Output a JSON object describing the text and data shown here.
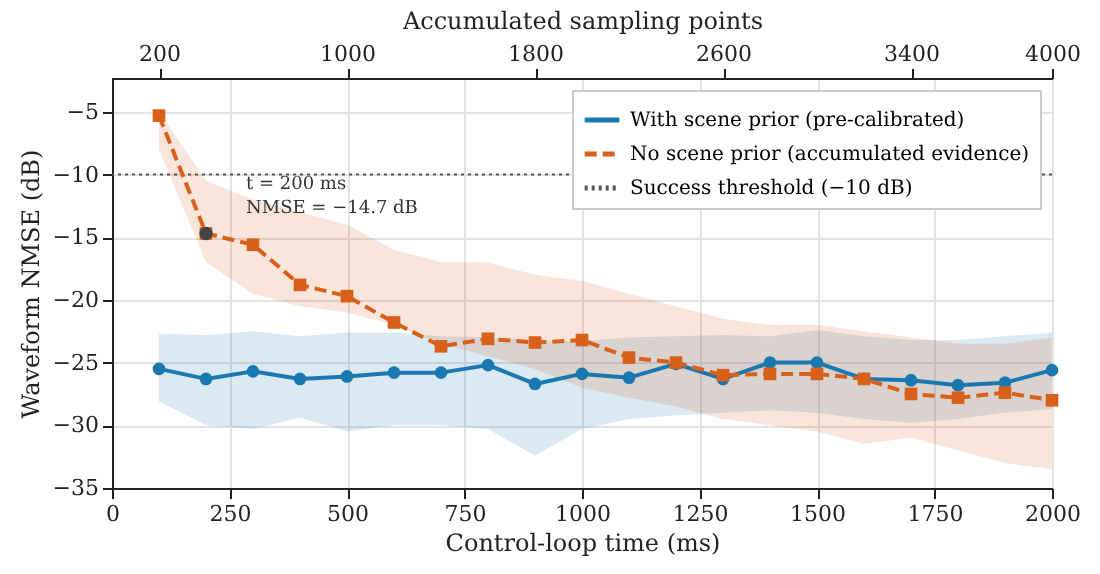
{
  "chart_data": {
    "type": "line",
    "xlabel": "Control-loop time (ms)",
    "ylabel": "Waveform NMSE (dB)",
    "x2label": "Accumulated sampling points",
    "x": [
      100,
      200,
      300,
      400,
      500,
      600,
      700,
      800,
      900,
      1000,
      1100,
      1200,
      1300,
      1400,
      1500,
      1600,
      1700,
      1800,
      1900,
      2000
    ],
    "series": [
      {
        "name": "With scene prior (pre-calibrated)",
        "color": "#1a78b0",
        "marker": "circle",
        "line_style": "solid",
        "values": [
          -25.5,
          -26.3,
          -25.7,
          -26.3,
          -26.1,
          -25.8,
          -25.8,
          -25.2,
          -26.7,
          -25.9,
          -26.2,
          -25.1,
          -26.3,
          -25.0,
          -25.0,
          -26.3,
          -26.4,
          -26.8,
          -26.6,
          -25.6
        ],
        "lower": [
          -28.1,
          -30.0,
          -30.3,
          -29.4,
          -30.5,
          -30.0,
          -30.0,
          -30.3,
          -32.4,
          -30.3,
          -29.5,
          -29.2,
          -29.0,
          -28.8,
          -29.0,
          -29.5,
          -29.8,
          -29.5,
          -29.0,
          -28.7
        ],
        "upper": [
          -22.7,
          -22.8,
          -22.5,
          -22.9,
          -22.6,
          -22.6,
          -22.9,
          -23.0,
          -23.2,
          -23.3,
          -23.0,
          -22.9,
          -22.8,
          -22.9,
          -22.4,
          -22.9,
          -23.2,
          -23.2,
          -22.9,
          -22.6
        ]
      },
      {
        "name": "No scene prior (accumulated evidence)",
        "color": "#d8601a",
        "marker": "square",
        "line_style": "dashed",
        "values": [
          -5.3,
          -14.7,
          -15.6,
          -18.8,
          -19.7,
          -21.8,
          -23.7,
          -23.1,
          -23.4,
          -23.2,
          -24.6,
          -25.0,
          -26.0,
          -25.9,
          -25.9,
          -26.3,
          -27.5,
          -27.8,
          -27.4,
          -28.0
        ],
        "lower": [
          -8.0,
          -17.0,
          -19.5,
          -20.5,
          -21.0,
          -22.0,
          -23.5,
          -24.5,
          -25.5,
          -27.0,
          -27.8,
          -28.5,
          -29.5,
          -30.0,
          -30.5,
          -31.5,
          -31.0,
          -32.0,
          -33.0,
          -33.5
        ],
        "upper": [
          -5.0,
          -10.5,
          -12.0,
          -13.0,
          -14.0,
          -16.0,
          -17.0,
          -17.0,
          -18.0,
          -18.5,
          -19.5,
          -20.5,
          -21.5,
          -22.0,
          -22.0,
          -22.5,
          -23.0,
          -23.5,
          -23.5,
          -23.0
        ]
      }
    ],
    "ref_lines": [
      {
        "axis": "y",
        "value": -10,
        "label": "Success threshold (−10 dB)",
        "color": "#555555",
        "line_style": "dotted"
      }
    ],
    "annotations": [
      {
        "text": "t = 200 ms\nNMSE = −14.7 dB",
        "x": 200,
        "y": -14.7
      }
    ],
    "xlim": [
      0,
      2000
    ],
    "xticks": [
      0,
      250,
      500,
      750,
      1000,
      1250,
      1500,
      1750,
      2000
    ],
    "ylim": [
      -35,
      -2.3
    ],
    "yticks": [
      -35,
      -30,
      -25,
      -20,
      -15,
      -10,
      -5
    ],
    "x2lim": [
      0,
      4000
    ],
    "x2ticks": [
      200,
      1000,
      1800,
      2600,
      3400,
      4000
    ],
    "grid": true,
    "legend": "top right"
  }
}
